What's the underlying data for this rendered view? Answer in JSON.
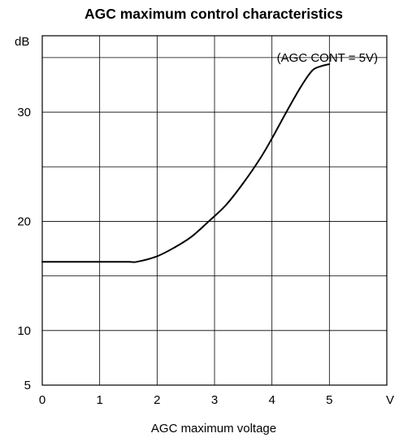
{
  "chart_data": {
    "type": "line",
    "title": "AGC maximum control characteristics",
    "xlabel": "AGC maximum voltage",
    "x_unit": "V",
    "y_unit": "dB",
    "annotation": "(AGC CONT = 5V)",
    "xlim": [
      0,
      6
    ],
    "ylim": [
      5,
      37
    ],
    "grid": true,
    "x_ticks": [
      0,
      1,
      2,
      3,
      4,
      5
    ],
    "y_ticks": [
      5,
      10,
      20,
      30
    ],
    "series": [
      {
        "x": [
          0,
          0.5,
          1.0,
          1.5,
          1.65,
          2.0,
          2.3,
          2.6,
          2.9,
          3.2,
          3.5,
          3.8,
          4.0,
          4.25,
          4.5,
          4.7,
          4.85,
          5.0
        ],
        "y": [
          16.3,
          16.3,
          16.3,
          16.3,
          16.3,
          16.8,
          17.6,
          18.6,
          20.0,
          21.5,
          23.5,
          25.8,
          27.6,
          30.0,
          32.3,
          33.8,
          34.2,
          34.4
        ]
      }
    ]
  }
}
